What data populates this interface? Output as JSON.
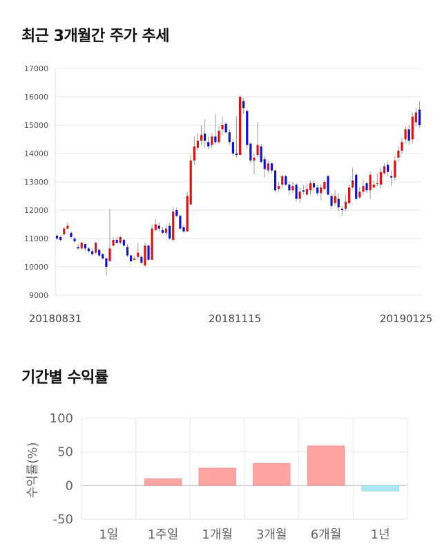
{
  "titles": {
    "price_trend": "최근 3개월간 주가 추세",
    "period_returns": "기간별 수익률"
  },
  "colors": {
    "up": "#dd1111",
    "down": "#1111cc",
    "bar_positive": "#ffa3a3",
    "bar_negative": "#aee6f2",
    "grid": "#e6e6e6"
  },
  "chart_data": [
    {
      "type": "candlestick",
      "title": "최근 3개월간 주가 추세",
      "ylim": [
        9000,
        17000
      ],
      "yticks": [
        "17000",
        "16000",
        "15000",
        "14000",
        "13000",
        "12000",
        "11000",
        "10000",
        "9000"
      ],
      "x_labels": [
        "20180831",
        "20181115",
        "20190125"
      ],
      "grid": true,
      "candles": [
        [
          11100,
          11000,
          11150,
          10950
        ],
        [
          11050,
          10950,
          11100,
          10900
        ],
        [
          11150,
          11350,
          11400,
          11100
        ],
        [
          11350,
          11450,
          11550,
          11300
        ],
        [
          11200,
          11050,
          11250,
          11000
        ],
        [
          11000,
          10900,
          11050,
          10850
        ],
        [
          10700,
          10650,
          10800,
          10600
        ],
        [
          10650,
          10850,
          10900,
          10600
        ],
        [
          10800,
          10650,
          10850,
          10550
        ],
        [
          10650,
          10550,
          10700,
          10500
        ],
        [
          10550,
          10450,
          10650,
          10400
        ],
        [
          10500,
          10850,
          10900,
          10450
        ],
        [
          10600,
          10400,
          10650,
          10350
        ],
        [
          10450,
          10300,
          10500,
          10250
        ],
        [
          10300,
          10000,
          10350,
          9700
        ],
        [
          10200,
          10650,
          12050,
          10200
        ],
        [
          10750,
          10950,
          11050,
          10700
        ],
        [
          10950,
          10850,
          11050,
          10800
        ],
        [
          10850,
          11050,
          11100,
          10800
        ],
        [
          10950,
          10750,
          11000,
          10700
        ],
        [
          10700,
          10400,
          10800,
          10350
        ],
        [
          10400,
          10200,
          10450,
          10150
        ],
        [
          10250,
          10300,
          10400,
          10200
        ],
        [
          10350,
          10500,
          10850,
          10250
        ],
        [
          10350,
          10150,
          10400,
          10100
        ],
        [
          10050,
          10750,
          10850,
          10000
        ],
        [
          10750,
          10250,
          10800,
          10200
        ],
        [
          10250,
          11350,
          11500,
          10250
        ],
        [
          11300,
          11500,
          11700,
          11250
        ],
        [
          11450,
          11350,
          11550,
          11250
        ],
        [
          11300,
          11200,
          11400,
          11150
        ],
        [
          11200,
          11350,
          11500,
          11100
        ],
        [
          11450,
          11000,
          11550,
          10950
        ],
        [
          10950,
          11950,
          12100,
          10900
        ],
        [
          12000,
          11800,
          12100,
          11750
        ],
        [
          11800,
          11350,
          11850,
          11300
        ],
        [
          11400,
          11250,
          11500,
          11200
        ],
        [
          11250,
          12500,
          12650,
          11250
        ],
        [
          12200,
          13750,
          13950,
          12200
        ],
        [
          13750,
          14250,
          14600,
          13600
        ],
        [
          14200,
          14450,
          14700,
          14100
        ],
        [
          14450,
          14650,
          15000,
          14300
        ],
        [
          14700,
          14450,
          15200,
          14200
        ],
        [
          14400,
          14250,
          14600,
          14150
        ],
        [
          14300,
          14600,
          14700,
          14200
        ],
        [
          14600,
          14400,
          15400,
          14300
        ],
        [
          14400,
          14800,
          14950,
          14350
        ],
        [
          14850,
          15000,
          15300,
          14650
        ],
        [
          15050,
          14750,
          15100,
          14700
        ],
        [
          14750,
          14400,
          14850,
          14300
        ],
        [
          14400,
          14000,
          14500,
          13900
        ],
        [
          14000,
          13950,
          15300,
          13850
        ],
        [
          13950,
          16000,
          16050,
          13950
        ],
        [
          15850,
          15600,
          15950,
          15400
        ],
        [
          15500,
          14300,
          15550,
          14150
        ],
        [
          14350,
          13750,
          14400,
          13650
        ],
        [
          13750,
          13850,
          14000,
          13250
        ],
        [
          13950,
          14300,
          15100,
          13850
        ],
        [
          14250,
          13700,
          14350,
          13650
        ],
        [
          13800,
          13450,
          13900,
          13150
        ],
        [
          13400,
          13650,
          13750,
          13300
        ],
        [
          13650,
          13400,
          13700,
          13300
        ],
        [
          13400,
          12700,
          13450,
          12650
        ],
        [
          12750,
          12850,
          13000,
          12650
        ],
        [
          12900,
          13200,
          13250,
          12800
        ],
        [
          13200,
          12900,
          13250,
          12850
        ],
        [
          12900,
          12700,
          13000,
          12550
        ],
        [
          12700,
          12850,
          13000,
          12600
        ],
        [
          12900,
          12400,
          12950,
          12300
        ],
        [
          12400,
          12650,
          12800,
          12250
        ],
        [
          12700,
          12650,
          12900,
          12550
        ],
        [
          12550,
          12750,
          12950,
          12500
        ],
        [
          12700,
          12950,
          13050,
          12550
        ],
        [
          12950,
          12800,
          13050,
          12700
        ],
        [
          12800,
          12600,
          12900,
          12500
        ],
        [
          12600,
          12800,
          12900,
          12350
        ],
        [
          12750,
          13000,
          13050,
          12700
        ],
        [
          13200,
          12550,
          13250,
          12500
        ],
        [
          12500,
          12150,
          12600,
          12050
        ],
        [
          12250,
          12500,
          12700,
          12150
        ],
        [
          12400,
          12100,
          12600,
          11950
        ],
        [
          12050,
          12000,
          12150,
          11800
        ],
        [
          12050,
          12300,
          12550,
          11950
        ],
        [
          12250,
          12800,
          12900,
          12200
        ],
        [
          12800,
          13050,
          13500,
          12750
        ],
        [
          13250,
          12400,
          13300,
          12350
        ],
        [
          12450,
          12650,
          12800,
          12400
        ],
        [
          12650,
          12850,
          13100,
          12550
        ],
        [
          12950,
          12700,
          13000,
          12600
        ],
        [
          12700,
          13250,
          13350,
          12400
        ],
        [
          12800,
          12900,
          13050,
          12750
        ],
        [
          12950,
          12950,
          13300,
          12850
        ],
        [
          12900,
          13350,
          13500,
          12750
        ],
        [
          13300,
          13550,
          13650,
          13250
        ],
        [
          13600,
          13350,
          13700,
          13200
        ],
        [
          13200,
          13150,
          13400,
          12850
        ],
        [
          13150,
          13750,
          13900,
          13050
        ],
        [
          13850,
          14100,
          14250,
          13700
        ],
        [
          14100,
          14400,
          14550,
          14000
        ],
        [
          14500,
          14850,
          14950,
          14350
        ],
        [
          14850,
          14450,
          15000,
          14300
        ],
        [
          14500,
          15300,
          15450,
          14350
        ],
        [
          15100,
          15450,
          15600,
          14950
        ],
        [
          15550,
          15000,
          15850,
          14900
        ]
      ]
    },
    {
      "type": "bar",
      "title": "기간별 수익률",
      "ylabel": "수익률(%)",
      "ylim": [
        -50,
        100
      ],
      "yticks": [
        "100",
        "50",
        "0",
        "-50"
      ],
      "categories": [
        "1일",
        "1주일",
        "1개월",
        "3개월",
        "6개월",
        "1년"
      ],
      "values": [
        0,
        10,
        26,
        33,
        59,
        -8
      ],
      "grid": true
    }
  ]
}
